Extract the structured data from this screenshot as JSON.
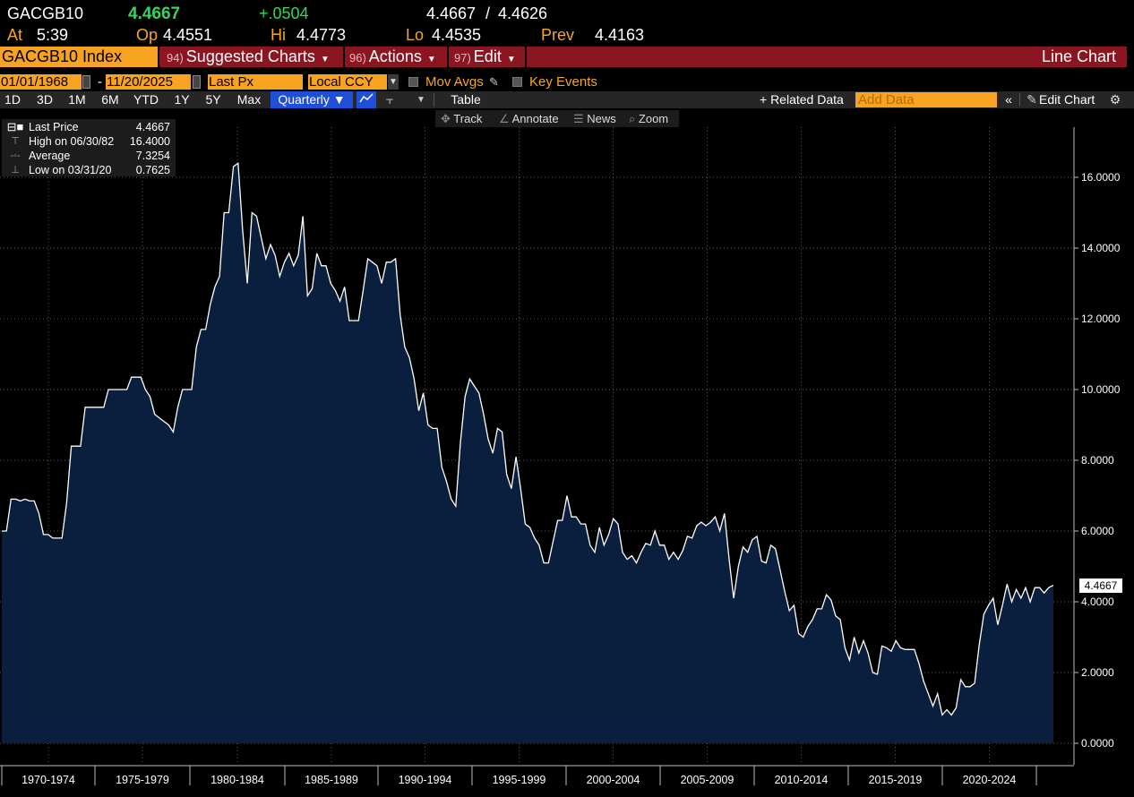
{
  "quote": {
    "ticker": "GACGB10",
    "last": "4.4667",
    "change": "+.0504",
    "bid": "4.4667",
    "ask": "4.4626",
    "at_label": "At",
    "time": "5:39",
    "op_label": "Op",
    "open": "4.4551",
    "hi_label": "Hi",
    "high": "4.4773",
    "lo_label": "Lo",
    "low": "4.4535",
    "prev_label": "Prev",
    "prev": "4.4163"
  },
  "titlebar": {
    "security": "GACGB10 Index",
    "menus": [
      {
        "num": "94)",
        "label": "Suggested Charts"
      },
      {
        "num": "96)",
        "label": "Actions"
      },
      {
        "num": "97)",
        "label": "Edit"
      }
    ],
    "right_title": "Line Chart"
  },
  "params": {
    "start_date": "01/01/1968",
    "dash": "-",
    "end_date": "11/20/2025",
    "field": "Last Px",
    "currency": "Local CCY",
    "mov_avgs": "Mov Avgs",
    "key_events": "Key Events"
  },
  "toolbar": {
    "ranges": [
      "1D",
      "3D",
      "1M",
      "6M",
      "YTD",
      "1Y",
      "5Y",
      "Max"
    ],
    "period": "Quarterly ▼",
    "table": "Table",
    "related": "+ Related Data",
    "add_data_placeholder": "Add Data",
    "edit_chart": "Edit Chart"
  },
  "subtools": {
    "track": "Track",
    "annotate": "Annotate",
    "news": "News",
    "zoom": "Zoom"
  },
  "legend": {
    "items": [
      {
        "name": "Last Price",
        "value": "4.4667"
      },
      {
        "name": "High on 06/30/82",
        "value": "16.4000"
      },
      {
        "name": "Average",
        "value": "7.3254"
      },
      {
        "name": "Low on 03/31/20",
        "value": "0.7625"
      }
    ]
  },
  "colors": {
    "amber": "#f5a623",
    "green": "#35d65a",
    "title_bar": "#8b1520",
    "area_fill": "#0a1f3d",
    "line": "#ffffff"
  },
  "chart_data": {
    "type": "area",
    "title": "",
    "xlabel": "",
    "ylabel": "",
    "ylim": [
      0,
      18
    ],
    "x_period": "Quarterly",
    "x_start": "1968-Q1",
    "y_ticks": [
      "0.0000",
      "2.0000",
      "4.0000",
      "6.0000",
      "8.0000",
      "10.0000",
      "12.0000",
      "14.0000",
      "16.0000"
    ],
    "x_tick_labels": [
      "1970-1974",
      "1975-1979",
      "1980-1984",
      "1985-1989",
      "1990-1994",
      "1995-1999",
      "2000-2004",
      "2005-2009",
      "2010-2014",
      "2015-2019",
      "2020-2024"
    ],
    "last_value_label": "4.4667",
    "series": [
      {
        "name": "Last Price",
        "values": [
          6.0,
          6.0,
          6.9,
          6.9,
          6.85,
          6.9,
          6.85,
          6.85,
          6.5,
          5.9,
          5.9,
          5.8,
          5.8,
          5.8,
          6.8,
          8.4,
          8.4,
          8.4,
          9.5,
          9.5,
          9.5,
          9.5,
          9.5,
          10.0,
          10.0,
          10.0,
          10.0,
          10.0,
          10.35,
          10.35,
          10.35,
          10.0,
          9.8,
          9.3,
          9.2,
          9.1,
          9.0,
          8.8,
          9.5,
          10.0,
          10.0,
          10.0,
          11.2,
          11.7,
          11.7,
          12.4,
          12.9,
          13.2,
          15.0,
          15.0,
          16.3,
          16.4,
          14.5,
          13.0,
          15.0,
          14.9,
          14.3,
          13.7,
          14.1,
          13.8,
          13.2,
          13.6,
          13.85,
          13.5,
          13.8,
          14.9,
          12.65,
          12.85,
          13.85,
          13.5,
          13.5,
          13.0,
          12.8,
          12.5,
          12.9,
          11.95,
          11.95,
          11.95,
          12.8,
          13.7,
          13.6,
          13.5,
          13.0,
          13.6,
          13.6,
          13.7,
          12.1,
          11.2,
          10.9,
          10.3,
          9.4,
          9.9,
          9.0,
          8.9,
          8.9,
          7.8,
          7.4,
          6.9,
          6.7,
          8.5,
          9.8,
          10.3,
          10.1,
          9.9,
          9.3,
          8.6,
          8.2,
          8.9,
          8.8,
          7.6,
          7.2,
          8.1,
          7.2,
          6.2,
          6.1,
          5.8,
          5.6,
          5.1,
          5.1,
          5.7,
          6.3,
          6.3,
          7.0,
          6.4,
          6.4,
          6.2,
          6.2,
          5.6,
          5.4,
          6.1,
          5.6,
          5.9,
          6.35,
          6.2,
          5.4,
          5.2,
          5.3,
          5.1,
          5.4,
          5.65,
          5.6,
          6.0,
          5.6,
          5.6,
          5.2,
          5.4,
          5.2,
          5.45,
          5.85,
          5.8,
          6.15,
          6.25,
          6.15,
          6.25,
          6.4,
          6.0,
          6.5,
          5.2,
          4.1,
          5.0,
          5.55,
          5.4,
          5.75,
          5.85,
          5.15,
          5.1,
          5.6,
          5.5,
          4.9,
          4.3,
          3.75,
          3.9,
          3.1,
          3.0,
          3.3,
          3.5,
          3.8,
          3.8,
          4.2,
          4.05,
          3.6,
          3.5,
          2.7,
          2.35,
          3.0,
          2.55,
          2.9,
          2.55,
          2.0,
          1.95,
          2.75,
          2.7,
          2.6,
          2.9,
          2.7,
          2.65,
          2.65,
          2.65,
          2.25,
          1.75,
          1.4,
          1.05,
          1.4,
          0.8,
          0.95,
          0.8,
          1.0,
          1.8,
          1.6,
          1.6,
          1.7,
          2.8,
          3.65,
          3.9,
          4.1,
          3.35,
          3.9,
          4.5,
          4.0,
          4.35,
          4.1,
          4.4,
          4.0,
          4.4,
          4.4,
          4.25,
          4.4,
          4.4667
        ]
      }
    ]
  }
}
